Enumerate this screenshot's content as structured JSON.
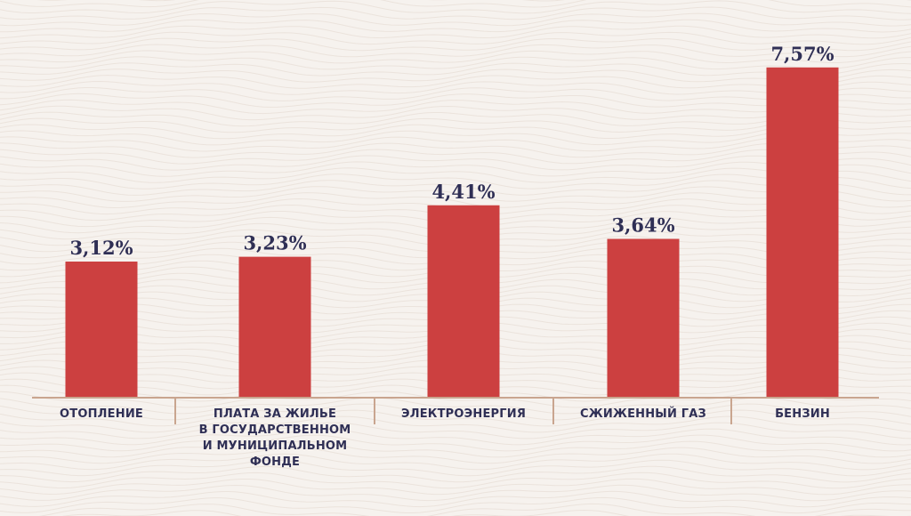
{
  "chart_data": {
    "type": "bar",
    "categories": [
      "ОТОПЛЕНИЕ",
      "ПЛАТА ЗА ЖИЛЬЕ\nВ ГОСУДАРСТВЕННОМ\nИ МУНИЦИПАЛЬНОМ\nФОНДЕ",
      "ЭЛЕКТРОЭНЕРГИЯ",
      "СЖИЖЕННЫЙ ГАЗ",
      "БЕНЗИН"
    ],
    "values": [
      3.12,
      3.23,
      4.41,
      3.64,
      7.57
    ],
    "value_labels": [
      "3,12%",
      "3,23%",
      "4,41%",
      "3,64%",
      "7,57%"
    ],
    "unit": "%",
    "ylim": [
      0,
      8.3
    ],
    "grid": false,
    "legend": "none",
    "colors": {
      "bar": "#cc4040",
      "axis": "#c9a58f",
      "text": "#2f2f55",
      "background": "#f6f2ee"
    }
  }
}
